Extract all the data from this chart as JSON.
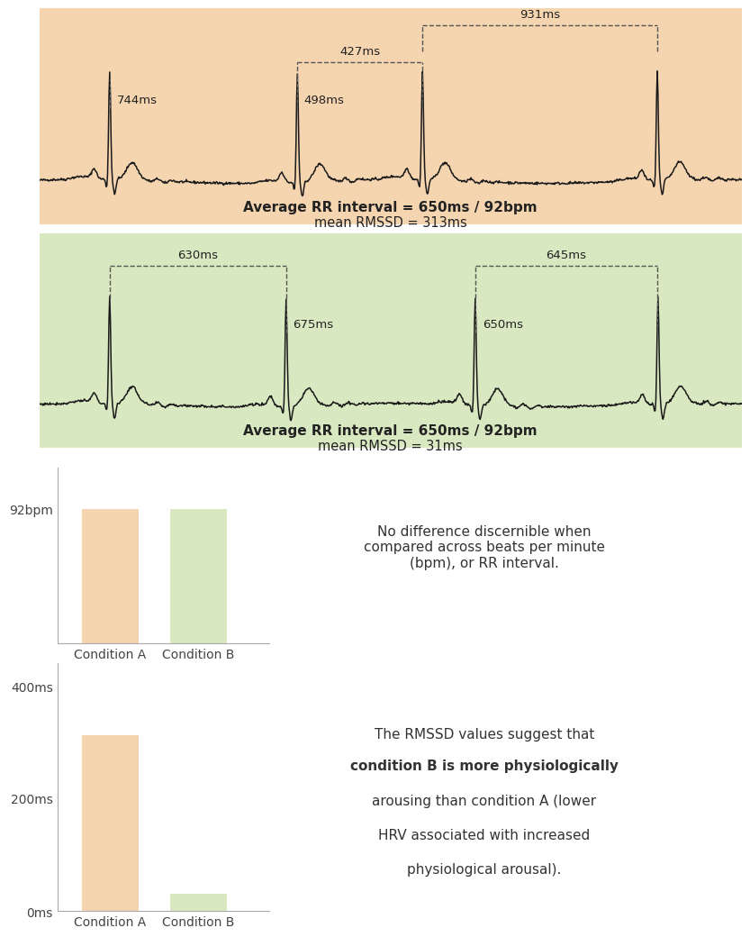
{
  "panel1_bg": "#f5d5b0",
  "panel2_bg": "#d8e8c0",
  "bar_color_A": "#f5d5b0",
  "bar_color_B": "#d8e8c0",
  "ecg_color": "#1a1a1a",
  "panel1_avg_bold": "Average RR interval = 650ms / 92bpm",
  "panel1_avg_normal": "mean RMSSD = 313ms",
  "panel2_avg_bold": "Average RR interval = 650ms / 92bpm",
  "panel2_avg_normal": "mean RMSSD = 31ms",
  "pA_labels_top": [
    "427ms",
    "931ms"
  ],
  "pA_labels_bot": [
    "744ms",
    "498ms"
  ],
  "pB_labels_top": [
    "630ms",
    "645ms"
  ],
  "pB_labels_bot": [
    "675ms",
    "650ms"
  ],
  "bar1_categories": [
    "Condition A",
    "Condition B"
  ],
  "bar1_values": [
    92,
    92
  ],
  "bar1_ytick_val": 92,
  "bar1_ytick_label": "92bpm",
  "bar1_text": "No difference discernible when\ncompared across beats per minute\n(bpm), or RR interval.",
  "bar2_categories": [
    "Condition A",
    "Condition B"
  ],
  "bar2_values": [
    313,
    31
  ],
  "bar2_ytick_vals": [
    0,
    200,
    400
  ],
  "bar2_ytick_labels": [
    "0ms",
    "200ms",
    "400ms"
  ],
  "bar2_line1": "The RMSSD values suggest that",
  "bar2_line2_bold": "condition B is more physiologically",
  "bar2_line3_bold": "arousing than condition A",
  "bar2_line3_normal": " (lower",
  "bar2_line4": "HRV associated with increased",
  "bar2_line5": "physiological arousal)."
}
